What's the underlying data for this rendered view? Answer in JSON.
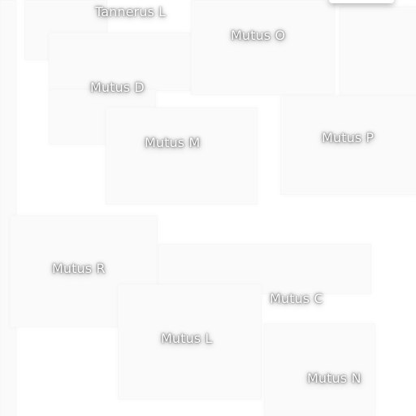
{
  "map": {
    "labels": [
      "Tannerus L",
      "Mutus O",
      "Mutus D",
      "Mutus M",
      "Mutus P",
      "Mutus R",
      "Mutus C",
      "Mutus L",
      "Mutus N"
    ]
  }
}
